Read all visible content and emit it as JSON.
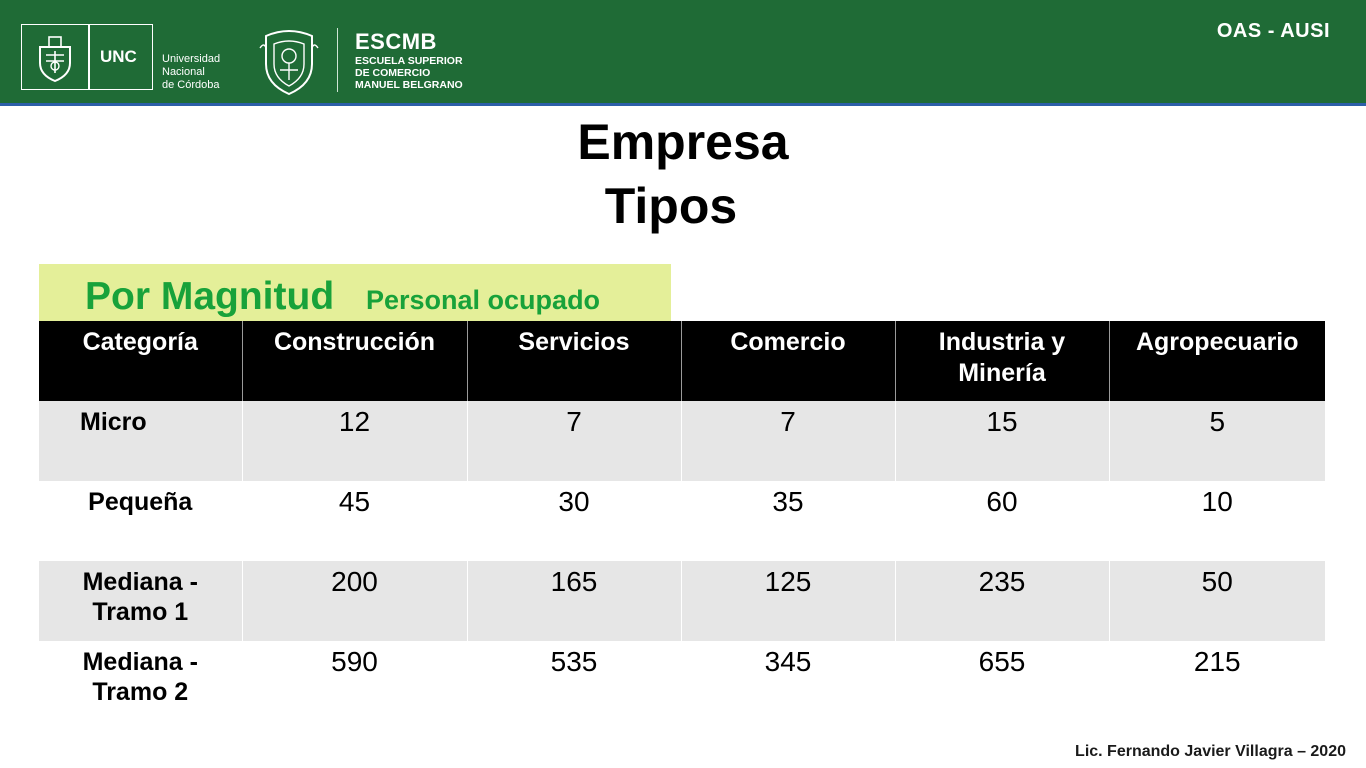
{
  "header": {
    "unc_short": "UNC",
    "university_lines": [
      "Universidad",
      "Nacional",
      "de Córdoba"
    ],
    "school_short": "ESCMB",
    "school_lines": [
      "ESCUELA SUPERIOR",
      "DE COMERCIO",
      "MANUEL BELGRANO"
    ],
    "course": "OAS - AUSI",
    "colors": {
      "background": "#1f6b36",
      "border": "#2d5fa8"
    }
  },
  "title": {
    "line1": "Empresa",
    "line2": "Tipos"
  },
  "section": {
    "main": "Por Magnitud",
    "sub": "Personal ocupado",
    "color": "#18a23a",
    "band_color": "#e4ef99"
  },
  "table": {
    "headers": [
      "Categoría",
      "Construcción",
      "Servicios",
      "Comercio",
      "Industria y Minería",
      "Agropecuario"
    ],
    "rows": [
      {
        "category": "Micro",
        "values": [
          "12",
          "7",
          "7",
          "15",
          "5"
        ]
      },
      {
        "category": "Pequeña",
        "values": [
          "45",
          "30",
          "35",
          "60",
          "10"
        ]
      },
      {
        "category": "Mediana - Tramo 1",
        "values": [
          "200",
          "165",
          "125",
          "235",
          "50"
        ]
      },
      {
        "category": "Mediana - Tramo 2",
        "values": [
          "590",
          "535",
          "345",
          "655",
          "215"
        ]
      }
    ]
  },
  "footer": {
    "author": "Lic. Fernando Javier Villagra – 2020"
  }
}
